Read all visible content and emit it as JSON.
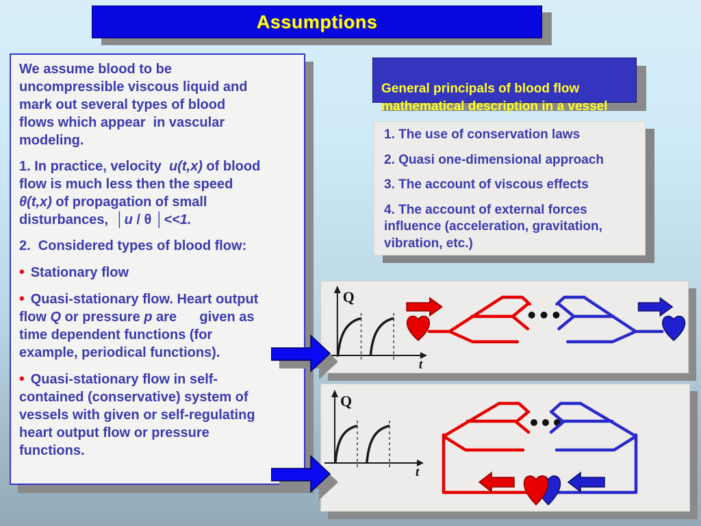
{
  "title": "Assumptions",
  "general_box": {
    "text": "General principals of blood flow\nmathematical description in a vessel"
  },
  "left_box": {
    "bullet_char": "•",
    "paragraphs": [
      {
        "runs": [
          {
            "t": "We assume blood to be\nuncompressible viscous liquid and\nmark out several types of blood\nflows which appear  in vascular\nmodeling."
          }
        ]
      },
      {
        "runs": [
          {
            "t": "1. In practice, velocity  "
          },
          {
            "t": "u(t,x)",
            "i": true
          },
          {
            "t": " of blood\nflow is much less then the speed\n"
          },
          {
            "t": "θ(t,x)",
            "i": true
          },
          {
            "t": " of propagation of small\ndisturbances,  │"
          },
          {
            "t": "u",
            "i": true
          },
          {
            "t": " / θ │"
          },
          {
            "t": "<<1.",
            "i": true
          }
        ]
      },
      {
        "runs": [
          {
            "t": "2.  Considered types of blood flow:"
          }
        ]
      },
      {
        "bullet": true,
        "runs": [
          {
            "t": "Stationary flow"
          }
        ]
      },
      {
        "bullet": true,
        "runs": [
          {
            "t": "Quasi-stationary flow. Heart output\nflow "
          },
          {
            "t": "Q",
            "i": true
          },
          {
            "t": " or pressure "
          },
          {
            "t": "p",
            "i": true
          },
          {
            "t": " are      given as\ntime dependent functions (for\nexample, periodical functions)."
          }
        ]
      },
      {
        "bullet": true,
        "runs": [
          {
            "t": "Quasi-stationary flow in self-\ncontained (conservative) system of\nvessels with given or self-regulating\nheart output flow or pressure\nfunctions."
          }
        ]
      }
    ]
  },
  "list_box": {
    "items": [
      "1. The use of conservation laws",
      "2. Quasi one-dimensional approach",
      "3. The account of viscous effects",
      "4. The account of external forces\ninfluence (acceleration, gravitation,\nvibration, etc.)"
    ]
  },
  "diagram_open": {
    "q_label": "Q",
    "t_label": "t"
  },
  "diagram_closed": {
    "q_label": "Q",
    "t_label": "t"
  },
  "colors": {
    "title_bg": "#0707e0",
    "accent_yellow": "#ffff1e",
    "box_text_blue": "#3a3aae",
    "bullet_red": "#e8001c",
    "artery_red": "#e60000",
    "vein_blue": "#2a2acc",
    "panel_gray": "#edecea",
    "shadow_gray": "#8a8a8a",
    "background_top": "#d8effa",
    "background_bottom": "#93a9b8",
    "connector_arrow_blue": "#0a0af0"
  }
}
